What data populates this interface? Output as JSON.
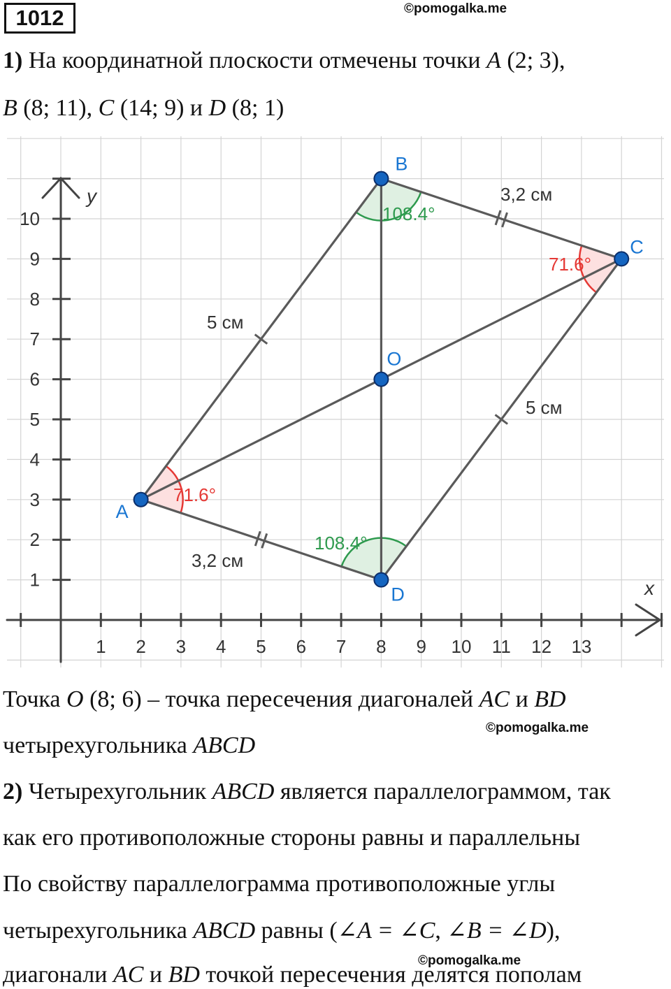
{
  "header": {
    "task_number": "1012",
    "watermark": "©pomogalka.me"
  },
  "part1": {
    "num": "1)",
    "line1_text": " На координатной плоскости отмечены точки ",
    "A": "A",
    "A_coords": " (2; 3),",
    "B": "B",
    "B_coords": " (8; 11), ",
    "C": "C",
    "C_coords": " (14; 9) и ",
    "D": "D",
    "D_coords": " (8; 1)"
  },
  "figure": {
    "x_axis_label": "x",
    "y_axis_label": "y",
    "x_ticks": [
      "1",
      "2",
      "3",
      "4",
      "5",
      "6",
      "7",
      "8",
      "9",
      "10",
      "11",
      "12",
      "13"
    ],
    "y_ticks": [
      "1",
      "2",
      "3",
      "4",
      "5",
      "6",
      "7",
      "8",
      "9",
      "10"
    ],
    "points": [
      {
        "name": "A",
        "x": 2,
        "y": 3
      },
      {
        "name": "B",
        "x": 8,
        "y": 11
      },
      {
        "name": "C",
        "x": 14,
        "y": 9
      },
      {
        "name": "D",
        "x": 8,
        "y": 1
      },
      {
        "name": "O",
        "x": 8,
        "y": 6
      }
    ],
    "side_labels": {
      "AB": "5 см",
      "BC": "3,2 см",
      "CD": "5 см",
      "DA": "3,2 см"
    },
    "angle_labels": {
      "A": "71.6°",
      "B": "108.4°",
      "C": "71.6°",
      "D": "108.4°"
    },
    "colors": {
      "point_fill": "#1565c0",
      "point_label": "#1976d2",
      "acute_angle": "#e53935",
      "acute_fill": "#fde0e0",
      "obtuse_angle": "#2e9a4e",
      "obtuse_fill": "#dff0e2",
      "segment": "#5a5a5a",
      "grid": "#d4d4d4"
    }
  },
  "text_after": {
    "s1_pre": "Точка ",
    "O": "O",
    "s1_mid": " (8; 6) – точка пересечения диагоналей ",
    "AC": "AC",
    "and": " и ",
    "BD": "BD",
    "s2_pre": "четырехугольника ",
    "ABCD": "ABCD",
    "p2_num": "2)",
    "p2_pre": " Четырехугольник ",
    "p2_post": " является параллелограммом, так",
    "p2_line2": "как его противоположные стороны равны и параллельны",
    "p3_line1": "По свойству параллелограмма противоположные углы",
    "p3_l2_pre": "четырехугольника ",
    "p3_l2_mid": " равны (",
    "angle_eq1": "∠A = ∠C",
    "comma": ", ",
    "angle_eq2": "∠B = ∠D",
    "p3_l2_end": "),",
    "p3_l3_pre": "диагонали ",
    "p3_l3_post": " точкой пересечения делятся пополам"
  }
}
